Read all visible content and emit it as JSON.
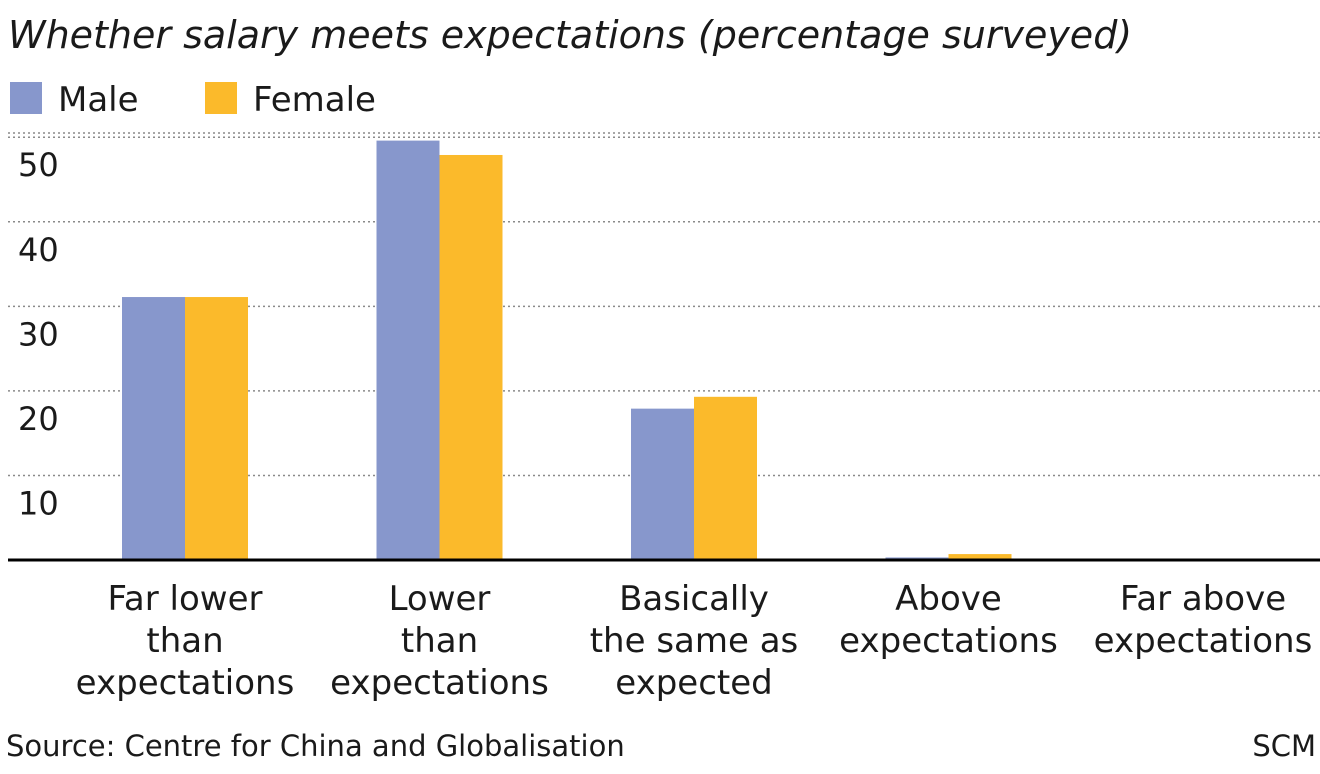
{
  "chart_data": {
    "type": "bar",
    "title": "Whether salary meets expectations (percentage surveyed)",
    "categories": [
      [
        "Far lower",
        "than",
        "expectations"
      ],
      [
        "Lower",
        "than",
        "expectations"
      ],
      [
        "Basically",
        "the same as",
        "expected"
      ],
      [
        "Above",
        "expectations"
      ],
      [
        "Far above",
        "expectations"
      ]
    ],
    "series": [
      {
        "name": "Male",
        "color": "#8797cc",
        "values": [
          31.1,
          49.6,
          17.9,
          0.3,
          0
        ]
      },
      {
        "name": "Female",
        "color": "#fbba2b",
        "values": [
          31.1,
          47.9,
          19.3,
          0.7,
          0
        ]
      }
    ],
    "yticks": [
      10,
      20,
      30,
      40,
      50
    ],
    "ylim": [
      0,
      50.5
    ],
    "grid": true,
    "legend": "top-left"
  },
  "footer": {
    "source": "Source: Centre for China and Globalisation",
    "credit": "SCM"
  }
}
